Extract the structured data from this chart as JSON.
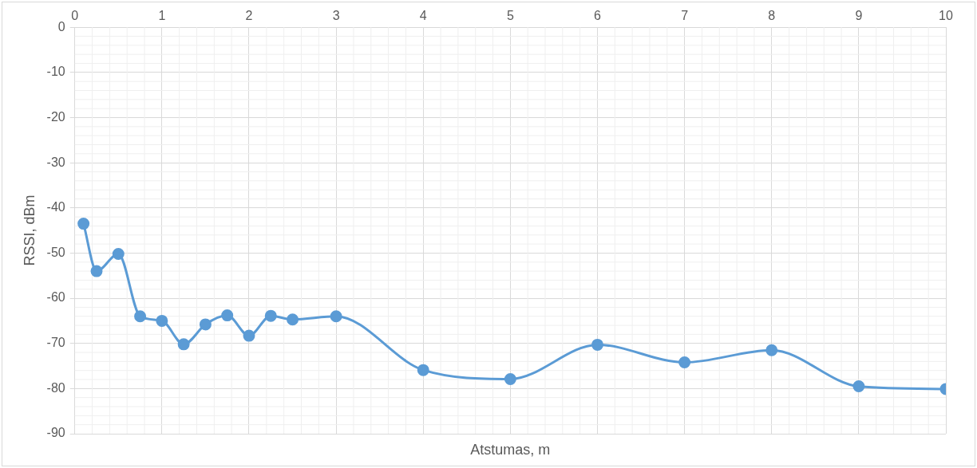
{
  "chart_data": {
    "type": "line",
    "xlabel": "Atstumas, m",
    "ylabel": "RSSI, dBm",
    "x": [
      0.1,
      0.25,
      0.5,
      0.75,
      1,
      1.25,
      1.5,
      1.75,
      2,
      2.25,
      2.5,
      3,
      4,
      5,
      6,
      7,
      8,
      9,
      10
    ],
    "series": [
      {
        "color": "#5b9bd5",
        "values": [
          -43.5,
          -54,
          -50.2,
          -64,
          -65,
          -70.2,
          -65.8,
          -63.8,
          -68.3,
          -63.9,
          -64.7,
          -64,
          -75.9,
          -77.9,
          -70.3,
          -74.2,
          -71.5,
          -79.5,
          -80.1
        ]
      }
    ],
    "xlim": [
      0,
      10
    ],
    "xticks": [
      0,
      1,
      2,
      3,
      4,
      5,
      6,
      7,
      8,
      9,
      10
    ],
    "ylim": [
      -90,
      0
    ],
    "yticks": [
      -90,
      -80,
      -70,
      -60,
      -50,
      -40,
      -30,
      -20,
      -10,
      0
    ],
    "grid": true,
    "marker": "circle",
    "legend": false
  }
}
